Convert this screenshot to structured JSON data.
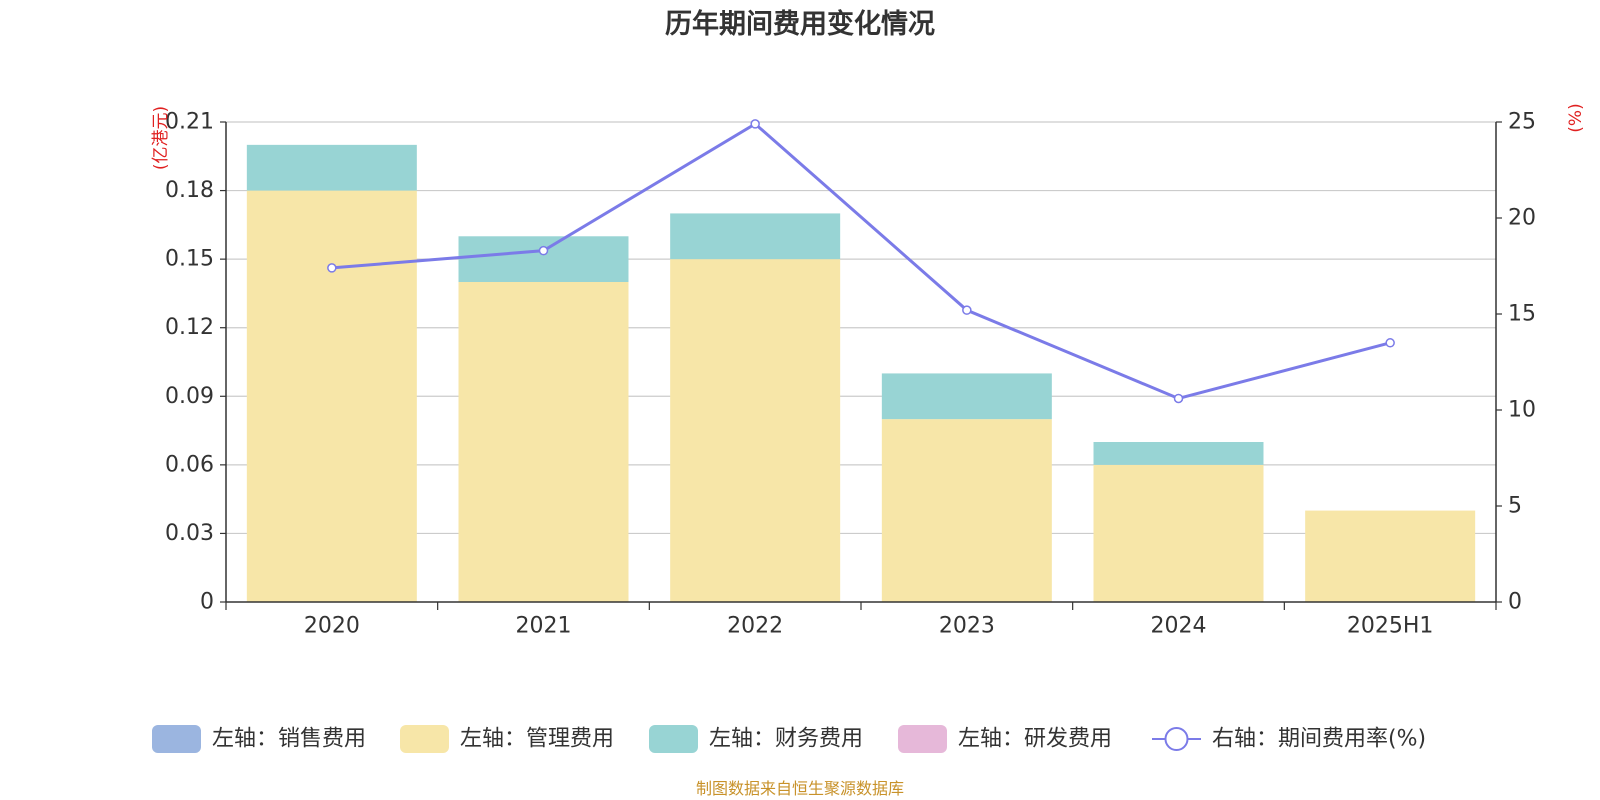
{
  "chart_data": {
    "type": "bar",
    "title": "历年期间费用变化情况",
    "categories": [
      "2020",
      "2021",
      "2022",
      "2023",
      "2024",
      "2025H1"
    ],
    "series": [
      {
        "name": "左轴：销售费用",
        "axis": "left",
        "kind": "bar",
        "color": "#9bb5e0",
        "values": [
          0,
          0,
          0,
          0,
          0,
          0
        ]
      },
      {
        "name": "左轴：管理费用",
        "axis": "left",
        "kind": "bar",
        "color": "#f7e6a8",
        "values": [
          0.18,
          0.14,
          0.15,
          0.08,
          0.06,
          0.04
        ]
      },
      {
        "name": "左轴：财务费用",
        "axis": "left",
        "kind": "bar",
        "color": "#98d4d4",
        "values": [
          0.02,
          0.02,
          0.02,
          0.02,
          0.01,
          0
        ]
      },
      {
        "name": "左轴：研发费用",
        "axis": "left",
        "kind": "bar",
        "color": "#e6b8d9",
        "values": [
          0,
          0,
          0,
          0,
          0,
          0
        ]
      },
      {
        "name": "右轴：期间费用率(%)",
        "axis": "right",
        "kind": "line",
        "color": "#7b7be8",
        "values": [
          17.4,
          18.3,
          24.9,
          15.2,
          10.6,
          13.5
        ]
      }
    ],
    "left_axis": {
      "label": "(亿港元)",
      "ylim": [
        0,
        0.21
      ],
      "ticks": [
        "0",
        "0.03",
        "0.06",
        "0.09",
        "0.12",
        "0.15",
        "0.18",
        "0.21"
      ]
    },
    "right_axis": {
      "label": "(%)",
      "ylim": [
        0,
        25
      ],
      "ticks": [
        "0",
        "5",
        "10",
        "15",
        "20",
        "25"
      ]
    },
    "grid": true,
    "legend_position": "bottom",
    "source": "制图数据来自恒生聚源数据库",
    "colors": {
      "unit_label": "#e02020",
      "source": "#c8922a",
      "axis": "#333333",
      "grid": "#cccccc"
    }
  }
}
